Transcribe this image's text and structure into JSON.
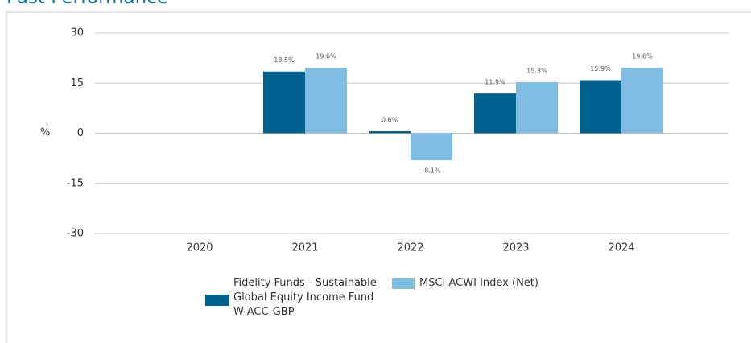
{
  "chart_data": {
    "type": "bar",
    "title": "Past Performance",
    "y_label": "%",
    "categories": [
      "2020",
      "2021",
      "2022",
      "2023",
      "2024"
    ],
    "series": [
      {
        "name": "Fidelity Funds - Sustainable Global Equity Income Fund W-ACC-GBP",
        "color": "#00628f",
        "values": [
          null,
          18.5,
          0.6,
          11.9,
          15.9
        ],
        "value_labels": [
          null,
          "18.5%",
          "0.6%",
          "11.9%",
          "15.9%"
        ]
      },
      {
        "name": "MSCI ACWI Index (Net)",
        "color": "#7fbde3",
        "values": [
          null,
          19.6,
          -8.1,
          15.3,
          19.6
        ],
        "value_labels": [
          null,
          "19.6%",
          "-8.1%",
          "15.3%",
          "19.6%"
        ]
      }
    ],
    "ylim": [
      -30,
      30
    ],
    "yticks": [
      -30,
      -15,
      0,
      15,
      30
    ],
    "grid": true
  }
}
